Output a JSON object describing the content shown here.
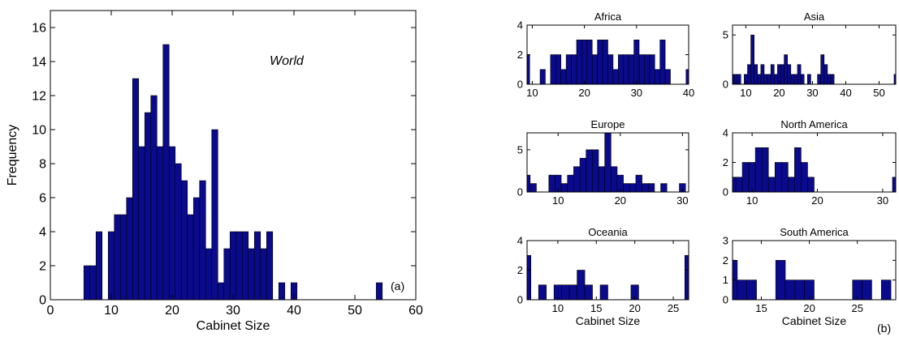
{
  "colors": {
    "bar_fill": "#0a0a8c",
    "bar_edge": "#000000",
    "axis": "#000000",
    "background": "#ffffff"
  },
  "figure": {
    "label_a": "(a)",
    "label_b": "(b)"
  },
  "chart_data": [
    {
      "type": "bar",
      "panel": "a",
      "title": "",
      "annotation": "World",
      "xlabel": "Cabinet Size",
      "ylabel": "Frequency",
      "xlim": [
        0,
        60
      ],
      "ylim": [
        0,
        17
      ],
      "xticks": [
        0,
        10,
        20,
        30,
        40,
        50,
        60
      ],
      "yticks": [
        0,
        2,
        4,
        6,
        8,
        10,
        12,
        14,
        16
      ],
      "x": [
        6,
        7,
        8,
        9,
        10,
        11,
        12,
        13,
        14,
        15,
        16,
        17,
        18,
        19,
        20,
        21,
        22,
        23,
        24,
        25,
        26,
        27,
        28,
        29,
        30,
        31,
        32,
        33,
        34,
        35,
        36,
        37,
        38,
        40,
        54
      ],
      "values": [
        2,
        2,
        4,
        0,
        4,
        5,
        5,
        6,
        13,
        9,
        11,
        12,
        9,
        15,
        9,
        8,
        7,
        5,
        6,
        7,
        3,
        10,
        1,
        3,
        4,
        4,
        4,
        3,
        4,
        3,
        4,
        0,
        1,
        1,
        1
      ]
    },
    {
      "type": "bar",
      "panel": "b",
      "title": "Africa",
      "xlabel": "",
      "xlim": [
        9,
        40
      ],
      "ylim": [
        0,
        4
      ],
      "xticks": [
        10,
        20,
        30,
        40
      ],
      "yticks": [
        0,
        2,
        4
      ],
      "x": [
        9,
        12,
        14,
        15,
        16,
        17,
        18,
        19,
        20,
        21,
        22,
        23,
        24,
        25,
        26,
        27,
        28,
        29,
        30,
        31,
        32,
        33,
        34,
        35,
        36,
        40
      ],
      "values": [
        2,
        1,
        2,
        2,
        1,
        2,
        2,
        3,
        3,
        3,
        2,
        3,
        3,
        2,
        1,
        2,
        2,
        2,
        3,
        2,
        2,
        2,
        1,
        3,
        1,
        1
      ]
    },
    {
      "type": "bar",
      "panel": "b",
      "title": "Asia",
      "xlabel": "",
      "xlim": [
        6,
        55
      ],
      "ylim": [
        0,
        6
      ],
      "xticks": [
        10,
        20,
        30,
        40,
        50
      ],
      "yticks": [
        0,
        5
      ],
      "x": [
        6,
        7,
        8,
        10,
        11,
        12,
        13,
        14,
        15,
        16,
        17,
        18,
        19,
        20,
        21,
        22,
        23,
        24,
        25,
        26,
        27,
        29,
        32,
        33,
        34,
        35,
        36,
        55
      ],
      "values": [
        1,
        1,
        1,
        1,
        2,
        5,
        2,
        1,
        2,
        1,
        1,
        2,
        1,
        2,
        2,
        3,
        2,
        1,
        1,
        2,
        1,
        1,
        1,
        3,
        2,
        1,
        1,
        1
      ]
    },
    {
      "type": "bar",
      "panel": "b",
      "title": "Europe",
      "xlabel": "",
      "xlim": [
        5,
        31
      ],
      "ylim": [
        0,
        7
      ],
      "xticks": [
        10,
        20,
        30
      ],
      "yticks": [
        0,
        5
      ],
      "x": [
        5,
        6,
        9,
        10,
        11,
        12,
        13,
        14,
        15,
        16,
        17,
        18,
        19,
        20,
        21,
        22,
        23,
        24,
        25,
        27,
        30
      ],
      "values": [
        2,
        1,
        2,
        2,
        1,
        2,
        3,
        4,
        5,
        5,
        3,
        7,
        3,
        2,
        1,
        1,
        2,
        1,
        1,
        1,
        1
      ]
    },
    {
      "type": "bar",
      "panel": "b",
      "title": "North America",
      "xlabel": "",
      "xlim": [
        7,
        32
      ],
      "ylim": [
        0,
        4
      ],
      "xticks": [
        10,
        20,
        30
      ],
      "yticks": [
        0,
        2,
        4
      ],
      "x": [
        7,
        8,
        9,
        10,
        11,
        12,
        13,
        14,
        15,
        16,
        17,
        18,
        19,
        32
      ],
      "values": [
        1,
        1,
        2,
        2,
        3,
        3,
        1,
        2,
        2,
        1,
        3,
        2,
        1,
        1
      ]
    },
    {
      "type": "bar",
      "panel": "b",
      "title": "Oceania",
      "xlabel": "Cabinet Size",
      "xlim": [
        6,
        27
      ],
      "ylim": [
        0,
        4
      ],
      "xticks": [
        10,
        15,
        20,
        25
      ],
      "yticks": [
        0,
        2,
        4
      ],
      "x": [
        6,
        8,
        10,
        11,
        12,
        13,
        14,
        16,
        20,
        27
      ],
      "values": [
        3,
        1,
        1,
        1,
        1,
        2,
        1,
        1,
        1,
        3
      ]
    },
    {
      "type": "bar",
      "panel": "b",
      "title": "South America",
      "xlabel": "Cabinet Size",
      "xlim": [
        12,
        29
      ],
      "ylim": [
        0,
        3
      ],
      "xticks": [
        15,
        20,
        25
      ],
      "yticks": [
        0,
        1,
        2,
        3
      ],
      "x": [
        12,
        13,
        14,
        17,
        18,
        19,
        20,
        25,
        26,
        28
      ],
      "values": [
        2,
        1,
        1,
        2,
        1,
        1,
        1,
        1,
        1,
        1
      ]
    }
  ]
}
